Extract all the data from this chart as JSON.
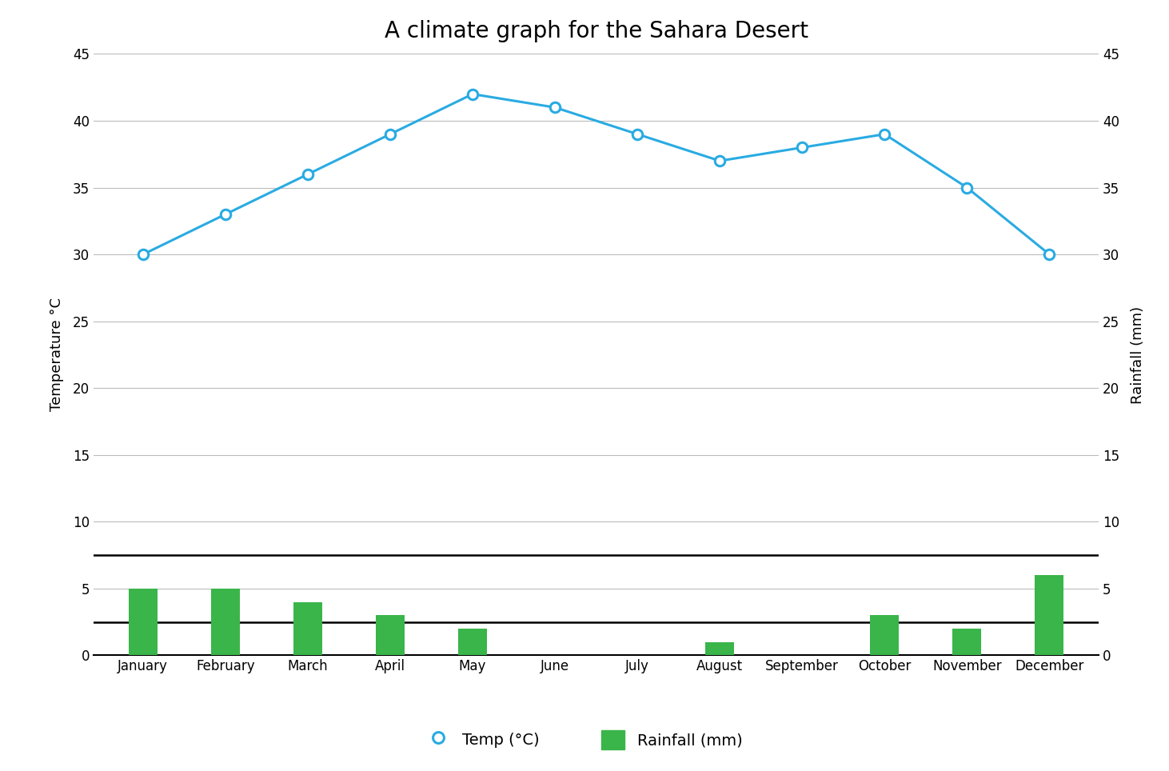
{
  "title": "A climate graph for the Sahara Desert",
  "months": [
    "January",
    "February",
    "March",
    "April",
    "May",
    "June",
    "July",
    "August",
    "September",
    "October",
    "November",
    "December"
  ],
  "temperature": [
    30,
    33,
    36,
    39,
    42,
    41,
    39,
    37,
    38,
    39,
    35,
    30
  ],
  "rainfall": [
    5,
    5,
    4,
    3,
    2,
    0,
    0,
    1,
    0,
    3,
    2,
    6
  ],
  "temp_color": "#29ABE2",
  "rain_color": "#39B54A",
  "ylim": [
    0,
    45
  ],
  "yticks": [
    0,
    5,
    10,
    15,
    20,
    25,
    30,
    35,
    40,
    45
  ],
  "ylabel_left": "Temperature °C",
  "ylabel_right": "Rainfall (mm)",
  "legend_temp": "Temp (°C)",
  "legend_rain": "Rainfall (mm)",
  "background_color": "#ffffff",
  "grid_color": "#bbbbbb",
  "thick_lines": [
    0,
    2.5,
    7.5
  ],
  "title_fontsize": 20,
  "axis_fontsize": 13,
  "tick_fontsize": 12,
  "legend_fontsize": 14
}
